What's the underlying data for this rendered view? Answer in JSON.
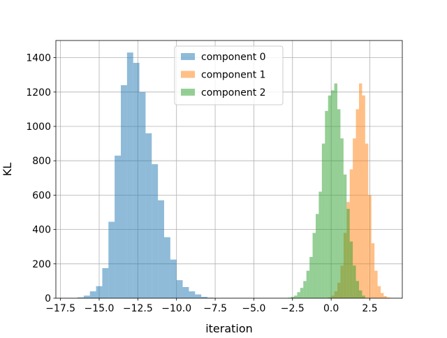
{
  "chart_data": {
    "type": "histogram",
    "xlabel": "iteration",
    "ylabel": "KL",
    "xlim": [
      -17.8,
      4.6
    ],
    "ylim": [
      0,
      1500
    ],
    "xticks": [
      -17.5,
      -15.0,
      -12.5,
      -10.0,
      -7.5,
      -5.0,
      -2.5,
      0.0,
      2.5
    ],
    "xtick_labels": [
      "−17.5",
      "−15.0",
      "−12.5",
      "−10.0",
      "−7.5",
      "−5.0",
      "−2.5",
      "0.0",
      "2.5"
    ],
    "yticks": [
      0,
      200,
      400,
      600,
      800,
      1000,
      1200,
      1400
    ],
    "ytick_labels": [
      "0",
      "200",
      "400",
      "600",
      "800",
      "1000",
      "1200",
      "1400"
    ],
    "grid": true,
    "legend_position": "upper-center",
    "series": [
      {
        "name": "component 0",
        "color": "#1f77b4",
        "opacity": 0.5,
        "bin_edges": [
          -16.4,
          -16.0,
          -15.6,
          -15.2,
          -14.8,
          -14.4,
          -14.0,
          -13.6,
          -13.2,
          -12.8,
          -12.4,
          -12.0,
          -11.6,
          -11.2,
          -10.8,
          -10.4,
          -10.0,
          -9.6,
          -9.2,
          -8.8,
          -8.4,
          -8.0,
          -7.6
        ],
        "counts": [
          5,
          15,
          40,
          70,
          175,
          445,
          830,
          1240,
          1430,
          1370,
          1200,
          960,
          780,
          570,
          355,
          225,
          105,
          65,
          40,
          22,
          8,
          3
        ]
      },
      {
        "name": "component 1",
        "color": "#ff7f0e",
        "opacity": 0.5,
        "bin_edges": [
          -0.2,
          0.0,
          0.2,
          0.4,
          0.6,
          0.8,
          1.0,
          1.2,
          1.4,
          1.6,
          1.8,
          2.0,
          2.2,
          2.4,
          2.6,
          2.8,
          3.0,
          3.2,
          3.4,
          3.6,
          3.8
        ],
        "counts": [
          5,
          15,
          40,
          90,
          190,
          380,
          560,
          750,
          930,
          1100,
          1250,
          1180,
          900,
          600,
          320,
          160,
          70,
          30,
          12,
          4
        ]
      },
      {
        "name": "component 2",
        "color": "#2ca02c",
        "opacity": 0.5,
        "bin_edges": [
          -2.8,
          -2.6,
          -2.4,
          -2.2,
          -2.0,
          -1.8,
          -1.6,
          -1.4,
          -1.2,
          -1.0,
          -0.8,
          -0.6,
          -0.4,
          -0.2,
          0.0,
          0.2,
          0.4,
          0.6,
          0.8,
          1.0,
          1.2,
          1.4,
          1.6,
          1.8,
          2.0,
          2.2
        ],
        "counts": [
          3,
          8,
          15,
          35,
          60,
          100,
          160,
          240,
          380,
          490,
          620,
          900,
          1090,
          1180,
          1210,
          1250,
          1100,
          930,
          720,
          520,
          330,
          190,
          100,
          45,
          15
        ]
      }
    ]
  }
}
